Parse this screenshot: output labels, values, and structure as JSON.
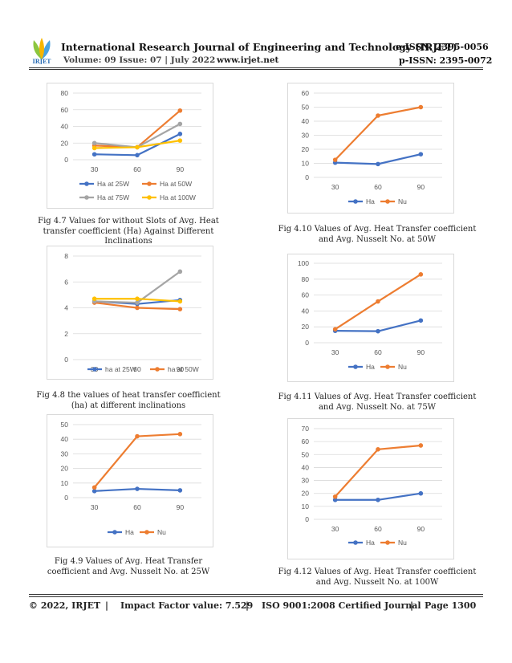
{
  "header": {
    "logo_text": "IRJET",
    "journal_title": "International Research Journal of Engineering and Technology (IRJET)",
    "e_issn": "e-ISSN: 2395-0056",
    "volume_issue": "Volume: 09 Issue: 07 | July 2022",
    "website": "www.irjet.net",
    "p_issn": "p-ISSN: 2395-0072"
  },
  "captions": {
    "fig_4_7": "Fig 4.7 Values for without Slots of Avg. Heat transfer coefficient (Ha) Against Different Inclinations",
    "fig_4_8": "Fig 4.8 the values of heat transfer coefficient (ha) at different inclinations",
    "fig_4_9": "Fig 4.9 Values of Avg. Heat Transfer coefficient and Avg. Nusselt No. at 25W",
    "fig_4_10": "Fig 4.10 Values of Avg. Heat Transfer coefficient and Avg. Nusselt No. at 50W",
    "fig_4_11": "Fig 4.11 Values of Avg. Heat Transfer coefficient and Avg. Nusselt No. at 75W",
    "fig_4_12": "Fig 4.12 Values of Avg. Heat Transfer coefficient and Avg. Nusselt No. at 100W"
  },
  "footer": {
    "copyright": "© 2022, IRJET",
    "sep1": "|",
    "impact": "Impact Factor value: 7.529",
    "sep2": "|",
    "iso": "ISO 9001:2008 Certified Journal",
    "sep3": "|",
    "page": "Page 1300"
  },
  "colors": {
    "blue": "#4472C4",
    "orange": "#ED7D31",
    "gray": "#A5A5A5",
    "yellow": "#FFC000",
    "grid": "#D9D9D9",
    "text": "#595959"
  },
  "chart_data": [
    {
      "id": "fig_4_7",
      "type": "line",
      "x": [
        "30",
        "60",
        "90"
      ],
      "ylim": [
        0,
        80
      ],
      "yticks": [
        0,
        20,
        40,
        60,
        80
      ],
      "legend_position": "bottom",
      "grid": true,
      "series": [
        {
          "name": "Ha at 25W",
          "color": "#4472C4",
          "values": [
            6.5,
            5.5,
            31
          ]
        },
        {
          "name": "Ha at 50W",
          "color": "#ED7D31",
          "values": [
            17,
            15,
            59
          ]
        },
        {
          "name": "Ha at 75W",
          "color": "#A5A5A5",
          "values": [
            20,
            15,
            43
          ]
        },
        {
          "name": "Ha at 100W",
          "color": "#FFC000",
          "values": [
            14,
            15,
            23
          ]
        }
      ]
    },
    {
      "id": "fig_4_8",
      "type": "line",
      "x": [
        "30",
        "60",
        "90"
      ],
      "ylim": [
        0,
        8
      ],
      "yticks": [
        0,
        2,
        4,
        6,
        8
      ],
      "legend_position": "bottom",
      "grid": true,
      "series": [
        {
          "name": "ha at 25W",
          "color": "#4472C4",
          "values": [
            4.5,
            4.3,
            4.6
          ]
        },
        {
          "name": "ha at 50W",
          "color": "#ED7D31",
          "values": [
            4.4,
            4.0,
            3.9
          ]
        },
        {
          "name": "",
          "color": "#A5A5A5",
          "values": [
            4.5,
            4.4,
            6.8
          ]
        },
        {
          "name": "",
          "color": "#FFC000",
          "values": [
            4.7,
            4.7,
            4.5
          ]
        }
      ]
    },
    {
      "id": "fig_4_9",
      "type": "line",
      "x": [
        "30",
        "60",
        "90"
      ],
      "ylim": [
        0,
        50
      ],
      "yticks": [
        0,
        10,
        20,
        30,
        40,
        50
      ],
      "legend_position": "bottom",
      "grid": true,
      "series": [
        {
          "name": "Ha",
          "color": "#4472C4",
          "values": [
            4.5,
            6,
            5
          ]
        },
        {
          "name": "Nu",
          "color": "#ED7D31",
          "values": [
            7,
            42,
            43.5
          ]
        }
      ]
    },
    {
      "id": "fig_4_10",
      "type": "line",
      "x": [
        "30",
        "60",
        "90"
      ],
      "ylim": [
        0,
        60
      ],
      "yticks": [
        0,
        10,
        20,
        30,
        40,
        50,
        60
      ],
      "legend_position": "bottom",
      "grid": true,
      "series": [
        {
          "name": "Ha",
          "color": "#4472C4",
          "values": [
            10.5,
            9.5,
            16.5
          ]
        },
        {
          "name": "Nu",
          "color": "#ED7D31",
          "values": [
            12.5,
            44,
            50
          ]
        }
      ]
    },
    {
      "id": "fig_4_11",
      "type": "line",
      "x": [
        "30",
        "60",
        "90"
      ],
      "ylim": [
        0,
        100
      ],
      "yticks": [
        0,
        20,
        40,
        60,
        80,
        100
      ],
      "legend_position": "bottom",
      "grid": true,
      "series": [
        {
          "name": "Ha",
          "color": "#4472C4",
          "values": [
            15,
            14.5,
            28
          ]
        },
        {
          "name": "Nu",
          "color": "#ED7D31",
          "values": [
            17,
            52,
            86
          ]
        }
      ]
    },
    {
      "id": "fig_4_12",
      "type": "line",
      "x": [
        "30",
        "60",
        "90"
      ],
      "ylim": [
        0,
        70
      ],
      "yticks": [
        0,
        10,
        20,
        30,
        40,
        50,
        60,
        70
      ],
      "legend_position": "bottom",
      "grid": true,
      "series": [
        {
          "name": "Ha",
          "color": "#4472C4",
          "values": [
            15,
            15,
            20
          ]
        },
        {
          "name": "Nu",
          "color": "#ED7D31",
          "values": [
            17.5,
            54,
            57
          ]
        }
      ]
    }
  ]
}
